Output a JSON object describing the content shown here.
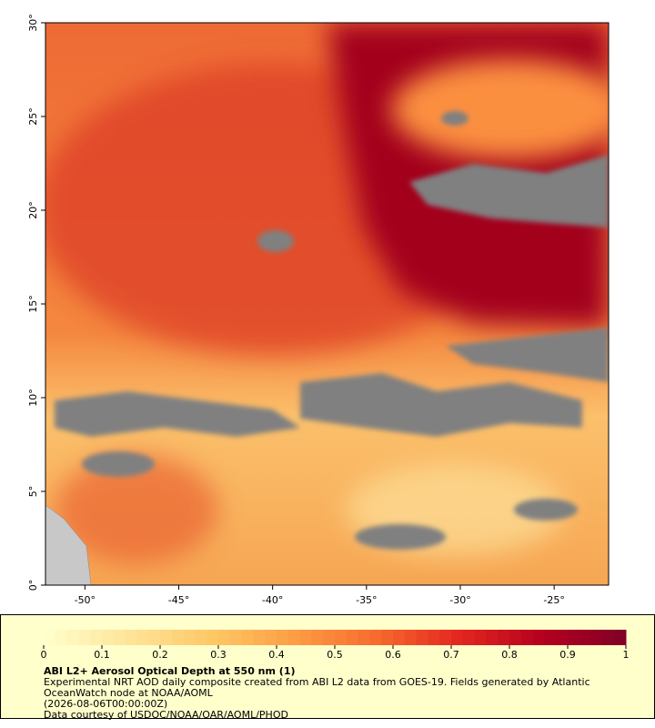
{
  "map": {
    "xlim": [
      -52.1,
      -22.1
    ],
    "ylim": [
      0,
      30
    ],
    "xticks": [
      {
        "value": -50,
        "label": "-50°"
      },
      {
        "value": -45,
        "label": "-45°"
      },
      {
        "value": -40,
        "label": "-40°"
      },
      {
        "value": -35,
        "label": "-35°"
      },
      {
        "value": -30,
        "label": "-30°"
      },
      {
        "value": -25,
        "label": "-25°"
      }
    ],
    "yticks": [
      {
        "value": 0,
        "label": "0°"
      },
      {
        "value": 5,
        "label": "5°"
      },
      {
        "value": 10,
        "label": "10°"
      },
      {
        "value": 15,
        "label": "15°"
      },
      {
        "value": 20,
        "label": "20°"
      },
      {
        "value": 25,
        "label": "25°"
      },
      {
        "value": 30,
        "label": "30°"
      }
    ]
  },
  "colorbar": {
    "lim": [
      0,
      1
    ],
    "ticks": [
      0,
      0.1,
      0.2,
      0.3,
      0.4,
      0.5,
      0.6,
      0.7,
      0.8,
      0.9,
      1
    ],
    "colors": [
      "#ffffcc",
      "#fee59a",
      "#fec966",
      "#fd9e45",
      "#f76b2e",
      "#e3261f",
      "#b5001f",
      "#800026"
    ]
  },
  "caption": {
    "title": "ABI L2+ Aerosol Optical Depth at 550 nm (1)",
    "lines": [
      "Experimental NRT AOD daily composite created from ABI L2 data from GOES-19. Fields generated by Atlantic",
      "OceanWatch node at NOAA/AOML",
      "(2026-08-06T00:00:00Z)",
      "Data courtesy of USDOC/NOAA/OAR/AOML/PHOD"
    ]
  }
}
